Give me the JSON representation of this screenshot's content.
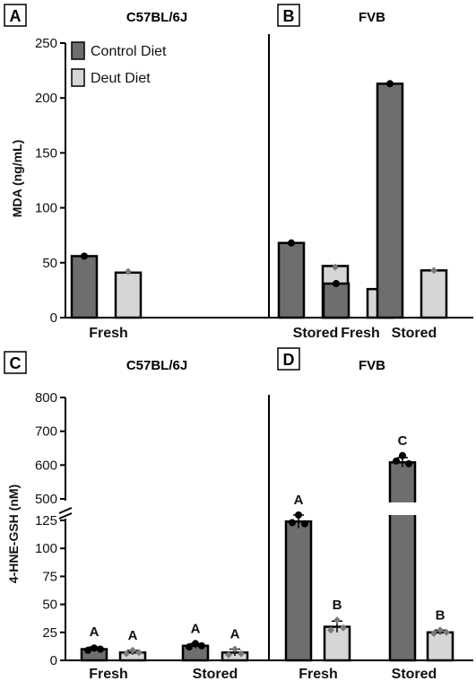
{
  "colors": {
    "control": "#6e6e6e",
    "deut": "#d6d6d6",
    "axis": "#000000",
    "point": "#000000",
    "point_deut": "#7a7a7a"
  },
  "legend": {
    "items": [
      "Control Diet",
      "Deut Diet"
    ]
  },
  "chart_data": [
    {
      "panel": "A",
      "type": "bar",
      "title": "C57BL/6J",
      "ylabel": "MDA (ng/mL)",
      "ylim": [
        0,
        250
      ],
      "yticks": [
        0,
        50,
        100,
        150,
        200,
        250
      ],
      "categories": [
        "Fresh",
        "Stored"
      ],
      "series": [
        {
          "name": "Control Diet",
          "values": [
            56,
            68
          ],
          "points": [
            [
              56
            ],
            [
              68
            ]
          ]
        },
        {
          "name": "Deut Diet",
          "values": [
            41,
            47
          ],
          "points": [
            [
              42
            ],
            [
              46
            ]
          ]
        }
      ]
    },
    {
      "panel": "B",
      "type": "bar",
      "title": "FVB",
      "ylim": [
        0,
        250
      ],
      "categories": [
        "Fresh",
        "Stored"
      ],
      "series": [
        {
          "name": "Control Diet",
          "values": [
            31,
            213
          ],
          "points": [
            [
              31
            ],
            [
              213
            ]
          ]
        },
        {
          "name": "Deut Diet",
          "values": [
            26,
            43
          ],
          "points": [
            [
              26
            ],
            [
              43
            ]
          ]
        }
      ]
    },
    {
      "panel": "C",
      "type": "bar",
      "title": "C57BL/6J",
      "ylabel": "4-HNE-GSH (nM)",
      "ylim": [
        0,
        800
      ],
      "yticks_lower": [
        0,
        25,
        50,
        75,
        100,
        125
      ],
      "yticks_upper": [
        500,
        600,
        700,
        800
      ],
      "axis_break": [
        125,
        500
      ],
      "categories": [
        "Fresh",
        "Stored"
      ],
      "series": [
        {
          "name": "Control Diet",
          "values": [
            10,
            13
          ],
          "error": [
            2,
            2
          ],
          "points": [
            [
              9,
              11,
              10
            ],
            [
              12,
              15,
              13
            ]
          ],
          "letters": [
            "A",
            "A"
          ]
        },
        {
          "name": "Deut Diet",
          "values": [
            7,
            7
          ],
          "error": [
            2,
            3
          ],
          "points": [
            [
              6,
              9,
              7
            ],
            [
              5,
              10,
              6
            ]
          ],
          "letters": [
            "A",
            "A"
          ]
        }
      ]
    },
    {
      "panel": "D",
      "type": "bar",
      "title": "FVB",
      "ylim": [
        0,
        800
      ],
      "axis_break": [
        125,
        500
      ],
      "categories": [
        "Fresh",
        "Stored"
      ],
      "series": [
        {
          "name": "Control Diet",
          "values": [
            124,
            608
          ],
          "error": [
            6,
            14
          ],
          "points": [
            [
              123,
              134,
              122
            ],
            [
              612,
              628,
              604
            ]
          ],
          "letters": [
            "A",
            "C"
          ]
        },
        {
          "name": "Deut Diet",
          "values": [
            30,
            25
          ],
          "error": [
            5,
            2
          ],
          "points": [
            [
              27,
              36,
              29
            ],
            [
              24,
              27,
              25
            ]
          ],
          "letters": [
            "B",
            "B"
          ]
        }
      ]
    }
  ]
}
